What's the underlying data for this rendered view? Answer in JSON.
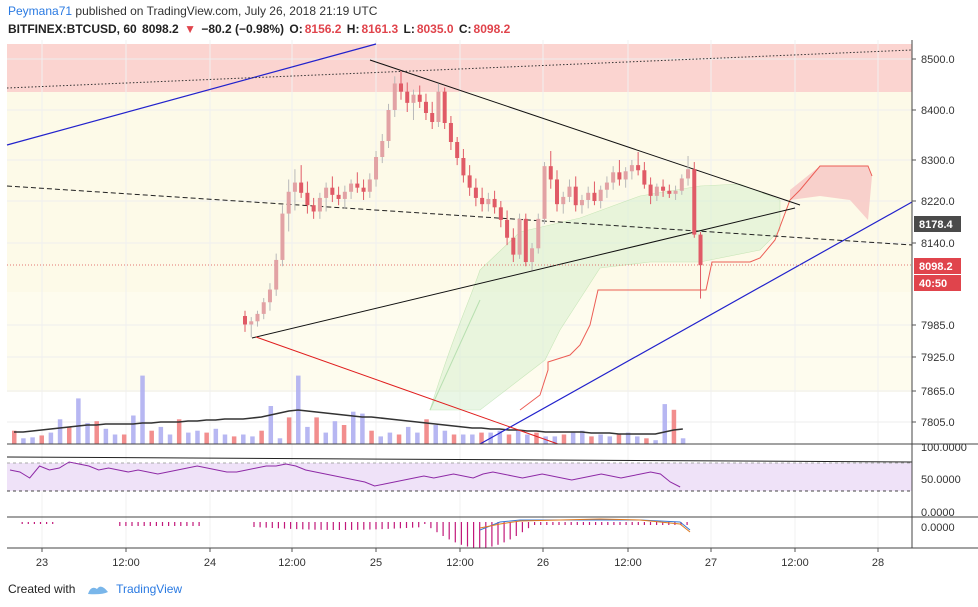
{
  "header": {
    "author": "Peymana71",
    "published_text": "published on TradingView.com, July 26, 2018 21:19 UTC",
    "symbol": "BITFINEX:BTCUSD, 60",
    "last": "8098.2",
    "change": "−80.2 (−0.98%)",
    "o_label": "O:",
    "o_value": "8156.2",
    "h_label": "H:",
    "h_value": "8161.3",
    "l_label": "L:",
    "l_value": "8035.0",
    "c_label": "C:",
    "c_value": "8098.2"
  },
  "footer": {
    "created_with": "Created with",
    "brand": "TradingView"
  },
  "colors": {
    "up": "#e8a3a3",
    "up_body": "#e2a2a4",
    "down": "#e05a66",
    "vol_up": "#aaaaf0",
    "vol_down": "#f07a7a",
    "cloud_green": "#d8f0d0",
    "cloud_red": "#f7c8c6",
    "trend_blue": "#2222cc",
    "trend_black": "#111111",
    "trend_red": "#e01e1e",
    "zone_red": "#fbd4d0",
    "zone_yellow": "#fdfae8",
    "rsi_fill": "#efe2f8",
    "rsi_line": "#8e2aa6",
    "macd_hist": "#c2187a",
    "badge_gray": "#4a4a4a",
    "badge_red": "#e0444c"
  },
  "chart_data": {
    "type": "candlestick",
    "symbol": "BITFINEX:BTCUSD",
    "timeframe": "60",
    "price_axis": {
      "ticks": [
        "8500.0",
        "8400.0",
        "8300.0",
        "8220.0",
        "8140.0",
        "7985.0",
        "7925.0",
        "7865.0",
        "7805.0"
      ],
      "badges": [
        {
          "label": "8178.4",
          "color": "#4a4a4a"
        },
        {
          "label": "8098.2",
          "color": "#e0444c"
        },
        {
          "label": "40:50",
          "color": "#e0444c"
        }
      ]
    },
    "time_axis": {
      "ticks": [
        "23",
        "12:00",
        "24",
        "12:00",
        "25",
        "12:00",
        "26",
        "12:00",
        "27",
        "12:00",
        "28"
      ]
    },
    "candles_ohlc": [
      [
        8002,
        8012,
        7972,
        7986
      ],
      [
        7986,
        8000,
        7962,
        7992
      ],
      [
        7992,
        8012,
        7982,
        8006
      ],
      [
        8006,
        8036,
        7996,
        8028
      ],
      [
        8028,
        8064,
        8012,
        8052
      ],
      [
        8052,
        8120,
        8040,
        8108
      ],
      [
        8108,
        8212,
        8096,
        8196
      ],
      [
        8196,
        8262,
        8162,
        8238
      ],
      [
        8238,
        8282,
        8202,
        8256
      ],
      [
        8256,
        8290,
        8226,
        8236
      ],
      [
        8236,
        8258,
        8196,
        8212
      ],
      [
        8212,
        8226,
        8186,
        8200
      ],
      [
        8200,
        8236,
        8186,
        8226
      ],
      [
        8226,
        8256,
        8200,
        8246
      ],
      [
        8246,
        8268,
        8218,
        8232
      ],
      [
        8232,
        8248,
        8212,
        8224
      ],
      [
        8224,
        8250,
        8206,
        8238
      ],
      [
        8238,
        8262,
        8224,
        8254
      ],
      [
        8254,
        8276,
        8236,
        8246
      ],
      [
        8246,
        8262,
        8222,
        8238
      ],
      [
        8238,
        8274,
        8226,
        8262
      ],
      [
        8262,
        8318,
        8248,
        8306
      ],
      [
        8306,
        8352,
        8294,
        8338
      ],
      [
        8338,
        8412,
        8324,
        8400
      ],
      [
        8400,
        8466,
        8386,
        8452
      ],
      [
        8452,
        8476,
        8420,
        8436
      ],
      [
        8436,
        8454,
        8396,
        8414
      ],
      [
        8414,
        8440,
        8380,
        8430
      ],
      [
        8430,
        8448,
        8404,
        8416
      ],
      [
        8416,
        8432,
        8380,
        8394
      ],
      [
        8394,
        8416,
        8362,
        8376
      ],
      [
        8376,
        8452,
        8366,
        8436
      ],
      [
        8436,
        8444,
        8362,
        8374
      ],
      [
        8374,
        8388,
        8320,
        8336
      ],
      [
        8336,
        8346,
        8290,
        8304
      ],
      [
        8304,
        8322,
        8256,
        8270
      ],
      [
        8270,
        8290,
        8230,
        8246
      ],
      [
        8246,
        8264,
        8210,
        8226
      ],
      [
        8226,
        8246,
        8200,
        8214
      ],
      [
        8214,
        8236,
        8200,
        8224
      ],
      [
        8224,
        8240,
        8196,
        8208
      ],
      [
        8208,
        8220,
        8170,
        8184
      ],
      [
        8184,
        8202,
        8136,
        8150
      ],
      [
        8150,
        8168,
        8104,
        8118
      ],
      [
        8118,
        8196,
        8110,
        8186
      ],
      [
        8186,
        8196,
        8096,
        8104
      ],
      [
        8104,
        8140,
        8088,
        8130
      ],
      [
        8130,
        8196,
        8120,
        8186
      ],
      [
        8186,
        8296,
        8176,
        8288
      ],
      [
        8288,
        8318,
        8244,
        8262
      ],
      [
        8262,
        8280,
        8200,
        8214
      ],
      [
        8214,
        8238,
        8196,
        8228
      ],
      [
        8228,
        8262,
        8218,
        8248
      ],
      [
        8248,
        8268,
        8200,
        8212
      ],
      [
        8212,
        8232,
        8196,
        8222
      ],
      [
        8222,
        8248,
        8206,
        8236
      ],
      [
        8236,
        8258,
        8212,
        8220
      ],
      [
        8220,
        8250,
        8206,
        8242
      ],
      [
        8242,
        8268,
        8226,
        8256
      ],
      [
        8256,
        8288,
        8242,
        8276
      ],
      [
        8276,
        8300,
        8250,
        8262
      ],
      [
        8262,
        8286,
        8246,
        8278
      ],
      [
        8278,
        8300,
        8262,
        8290
      ],
      [
        8290,
        8316,
        8270,
        8280
      ],
      [
        8280,
        8296,
        8244,
        8252
      ],
      [
        8252,
        8266,
        8214,
        8230
      ],
      [
        8230,
        8254,
        8220,
        8248
      ],
      [
        8248,
        8262,
        8228,
        8240
      ],
      [
        8240,
        8252,
        8226,
        8234
      ],
      [
        8234,
        8250,
        8222,
        8240
      ],
      [
        8240,
        8272,
        8232,
        8264
      ],
      [
        8264,
        8308,
        8250,
        8282
      ],
      [
        8282,
        8296,
        8150,
        8156
      ],
      [
        8156,
        8161,
        8035,
        8098
      ]
    ],
    "volume": [
      14,
      6,
      7,
      9,
      12,
      26,
      18,
      48,
      22,
      24,
      16,
      10,
      10,
      30,
      72,
      14,
      18,
      10,
      26,
      12,
      14,
      12,
      16,
      10,
      8,
      10,
      8,
      14,
      40,
      6,
      28,
      72,
      18,
      28,
      12,
      24,
      20,
      34,
      32,
      14,
      8,
      12,
      10,
      18,
      12,
      26,
      20,
      14,
      10,
      10,
      10,
      12,
      12,
      14,
      10,
      14,
      10,
      12,
      8,
      8,
      10,
      12,
      14,
      8,
      10,
      8,
      10,
      12,
      8,
      6,
      4,
      42,
      36,
      6
    ],
    "volume_ma": [
      12,
      12,
      13,
      14,
      15,
      16,
      17,
      18,
      19,
      19,
      20,
      20,
      20,
      20,
      21,
      21,
      22,
      22,
      22,
      23,
      23,
      24,
      24,
      25,
      25,
      25,
      26,
      27,
      29,
      31,
      33,
      34,
      33,
      32,
      31,
      30,
      29,
      28,
      27,
      27,
      26,
      25,
      24,
      23,
      22,
      21,
      20,
      19,
      18,
      17,
      16,
      16,
      15,
      15,
      14,
      14,
      13,
      13,
      12,
      12,
      12,
      12,
      12,
      11,
      11,
      11,
      10,
      10,
      10,
      10,
      10,
      12,
      14,
      15
    ],
    "rsi_levels": [
      "100.0000",
      "50.0000",
      "0.0000"
    ],
    "macd_levels": [
      "0.0000"
    ]
  }
}
